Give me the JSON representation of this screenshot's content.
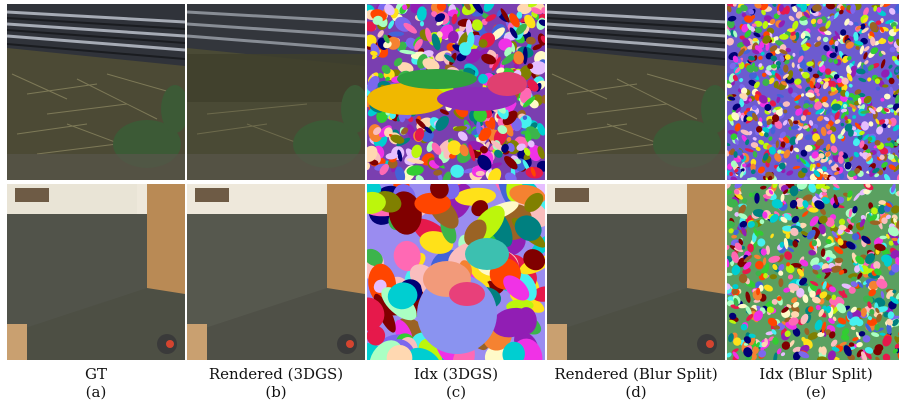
{
  "columns": [
    {
      "label": "GT",
      "sub": "(a)",
      "kind": "gt"
    },
    {
      "label": "Rendered (3DGS)",
      "sub": "(b)",
      "kind": "rendered-blurry"
    },
    {
      "label": "Idx (3DGS)",
      "sub": "(c)",
      "kind": "idx-coarse"
    },
    {
      "label": "Rendered (Blur Split)",
      "sub": "(d)",
      "kind": "rendered-sharp"
    },
    {
      "label": "Idx (Blur Split)",
      "sub": "(e)",
      "kind": "idx-fine"
    }
  ],
  "colors": {
    "fence_dark": "#2b2e35",
    "fence_light": "#8a8f9a",
    "grass": "#5a5a3c",
    "leaf": "#3f5a38",
    "floor": "#4b4d42",
    "wood": "#b88a55",
    "wall": "#efe9dc"
  }
}
